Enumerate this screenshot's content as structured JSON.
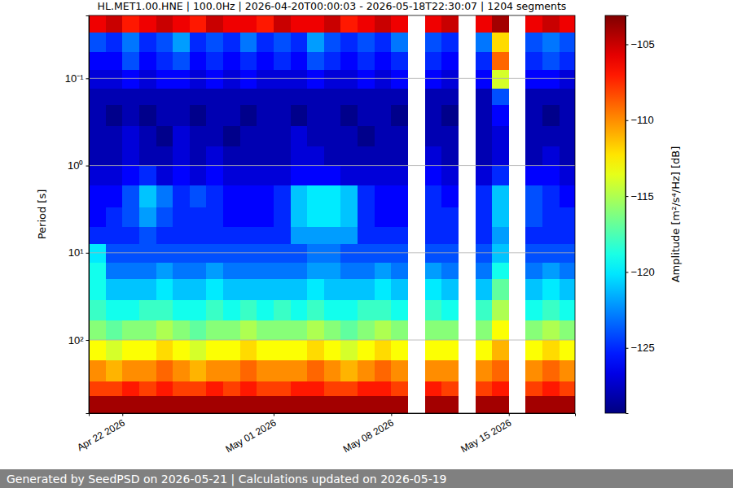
{
  "chart_data": {
    "type": "heatmap",
    "title": "HL.MET1.00.HNE | 100.0Hz | 2026-04-20T00:00:03 - 2026-05-18T22:30:07 | 1204 segments",
    "y_label": "Period [s]",
    "footer": "Generated by SeedPSD on 2026-05-21 | Calculations updated on 2026-05-19",
    "log": "y",
    "grid": "y",
    "xlim": [
      "2026-04-20T00:00:03",
      "2026-05-18T22:30:07"
    ],
    "xticks": [
      {
        "value": "2026-04-22",
        "label": "Apr 22 2026"
      },
      {
        "value": "2026-05-01",
        "label": "May 01 2026"
      },
      {
        "value": "2026-05-08",
        "label": "May 08 2026"
      },
      {
        "value": "2026-05-15",
        "label": "May 15 2026"
      }
    ],
    "ylim": [
      0.019,
      690
    ],
    "yticks": [
      {
        "value": 0.1,
        "label": "10⁻¹"
      },
      {
        "value": 1,
        "label": "10⁰"
      },
      {
        "value": 10,
        "label": "10¹"
      },
      {
        "value": 100,
        "label": "10²"
      }
    ],
    "x_bins": [
      "2026-04-20",
      "2026-04-21",
      "2026-04-22",
      "2026-04-23",
      "2026-04-24",
      "2026-04-25",
      "2026-04-26",
      "2026-04-27",
      "2026-04-28",
      "2026-04-29",
      "2026-04-30",
      "2026-05-01",
      "2026-05-02",
      "2026-05-03",
      "2026-05-04",
      "2026-05-05",
      "2026-05-06",
      "2026-05-07",
      "2026-05-08",
      "2026-05-09",
      "2026-05-10",
      "2026-05-11",
      "2026-05-12",
      "2026-05-13",
      "2026-05-14",
      "2026-05-15",
      "2026-05-16",
      "2026-05-17",
      "2026-05-18",
      "2026-05-19"
    ],
    "y_bins": [
      0.019,
      0.03,
      0.05,
      0.08,
      0.13,
      0.2,
      0.35,
      0.6,
      1,
      1.7,
      3,
      5,
      8,
      13,
      20,
      35,
      60,
      100,
      170,
      300,
      440,
      690
    ],
    "cells": [
      [
        -106,
        -105,
        -107,
        -106,
        -105,
        -106,
        -107,
        -105,
        -106,
        -106,
        -107,
        -105,
        -106,
        -106,
        -105,
        -107,
        -106,
        -105,
        -106,
        null,
        -106,
        -105,
        null,
        -106,
        -104,
        null,
        -106,
        -105,
        -106
      ],
      [
        -124,
        -125,
        -123,
        -125,
        -124,
        -122,
        -125,
        -124,
        -125,
        -123,
        -125,
        -124,
        -125,
        -122,
        -124,
        -125,
        -124,
        -125,
        -123,
        null,
        -124,
        -125,
        null,
        -123,
        -112,
        null,
        -124,
        -123,
        -124
      ],
      [
        -126,
        -126,
        -124,
        -126,
        -125,
        -124,
        -126,
        -125,
        -126,
        -125,
        -126,
        -125,
        -126,
        -124,
        -125,
        -126,
        -125,
        -126,
        -125,
        null,
        -125,
        -126,
        null,
        -125,
        -109,
        null,
        -125,
        -124,
        -125
      ],
      [
        -127,
        -127,
        -126,
        -127,
        -126,
        -126,
        -127,
        -126,
        -127,
        -126,
        -127,
        -127,
        -127,
        -126,
        -127,
        -127,
        -126,
        -127,
        -126,
        null,
        -126,
        -127,
        null,
        -126,
        -114,
        null,
        -126,
        -126,
        -127
      ],
      [
        -128,
        -128,
        -128,
        -128,
        -128,
        -128,
        -128,
        -128,
        -128,
        -128,
        -128,
        -128,
        -128,
        -128,
        -128,
        -128,
        -128,
        -128,
        -128,
        null,
        -128,
        -128,
        null,
        -128,
        -124,
        null,
        -128,
        -128,
        -128
      ],
      [
        -128,
        -129,
        -128,
        -129,
        -128,
        -128,
        -129,
        -128,
        -128,
        -129,
        -128,
        -128,
        -129,
        -128,
        -128,
        -129,
        -128,
        -128,
        -129,
        null,
        -128,
        -129,
        null,
        -128,
        -126,
        null,
        -128,
        -129,
        -128
      ],
      [
        -128,
        -128,
        -127,
        -128,
        -129,
        -127,
        -128,
        -128,
        -129,
        -128,
        -128,
        -128,
        -127,
        -128,
        -128,
        -128,
        -129,
        -128,
        -128,
        null,
        -128,
        -128,
        null,
        -128,
        -127,
        null,
        -128,
        -128,
        -128
      ],
      [
        -128,
        -128,
        -127,
        -128,
        -128,
        -127,
        -128,
        -127,
        -128,
        -128,
        -128,
        -128,
        -127,
        -127,
        -128,
        -128,
        -128,
        -128,
        -128,
        null,
        -127,
        -128,
        null,
        -128,
        -127,
        null,
        -128,
        -127,
        -128
      ],
      [
        -127,
        -127,
        -126,
        -125,
        -127,
        -126,
        -127,
        -126,
        -127,
        -127,
        -127,
        -127,
        -126,
        -126,
        -126,
        -127,
        -127,
        -127,
        -127,
        null,
        -126,
        -127,
        null,
        -127,
        -125,
        null,
        -126,
        -126,
        -127
      ],
      [
        -126,
        -126,
        -124,
        -121,
        -123,
        -125,
        -124,
        -125,
        -126,
        -126,
        -126,
        -125,
        -121,
        -120,
        -120,
        -121,
        -125,
        -126,
        -126,
        null,
        -125,
        -126,
        null,
        -125,
        -121,
        null,
        -124,
        -125,
        -126
      ],
      [
        -126,
        -125,
        -124,
        -122,
        -124,
        -125,
        -125,
        -125,
        -126,
        -126,
        -126,
        -125,
        -121,
        -120,
        -120,
        -121,
        -125,
        -126,
        -126,
        null,
        -125,
        -125,
        null,
        -125,
        -121,
        null,
        -124,
        -125,
        -125
      ],
      [
        -125,
        -125,
        -125,
        -124,
        -125,
        -125,
        -125,
        -125,
        -125,
        -125,
        -125,
        -125,
        -122,
        -122,
        -122,
        -122,
        -125,
        -125,
        -125,
        null,
        -125,
        -125,
        null,
        -125,
        -122,
        null,
        -125,
        -125,
        -125
      ],
      [
        -120,
        -124,
        -124,
        -124,
        -124,
        -124,
        -124,
        -124,
        -124,
        -124,
        -124,
        -124,
        -124,
        -123,
        -123,
        -124,
        -124,
        -124,
        -124,
        null,
        -124,
        -124,
        null,
        -124,
        -121,
        null,
        -124,
        -124,
        -124
      ],
      [
        -119,
        -123,
        -123,
        -123,
        -122,
        -123,
        -123,
        -122,
        -123,
        -123,
        -123,
        -123,
        -123,
        -122,
        -122,
        -123,
        -123,
        -122,
        -123,
        null,
        -122,
        -123,
        null,
        -123,
        -119,
        null,
        -123,
        -122,
        -123
      ],
      [
        -119,
        -121,
        -121,
        -121,
        -120,
        -121,
        -121,
        -120,
        -121,
        -121,
        -121,
        -121,
        -121,
        -120,
        -121,
        -121,
        -121,
        -120,
        -121,
        null,
        -120,
        -121,
        null,
        -121,
        -117,
        null,
        -121,
        -120,
        -121
      ],
      [
        -118,
        -119,
        -119,
        -118,
        -118,
        -119,
        -119,
        -118,
        -119,
        -118,
        -119,
        -118,
        -119,
        -118,
        -119,
        -119,
        -118,
        -118,
        -119,
        null,
        -118,
        -119,
        null,
        -118,
        -115,
        null,
        -119,
        -118,
        -119
      ],
      [
        -116,
        -117,
        -116,
        -116,
        -115,
        -116,
        -117,
        -116,
        -116,
        -115,
        -116,
        -116,
        -116,
        -115,
        -116,
        -117,
        -116,
        -115,
        -116,
        null,
        -116,
        -116,
        null,
        -116,
        -113,
        null,
        -116,
        -115,
        -116
      ],
      [
        -113,
        -114,
        -113,
        -113,
        -112,
        -113,
        -114,
        -113,
        -113,
        -112,
        -113,
        -113,
        -113,
        -112,
        -113,
        -114,
        -113,
        -112,
        -113,
        null,
        -113,
        -113,
        null,
        -113,
        -111,
        null,
        -113,
        -112,
        -113
      ],
      [
        -110,
        -111,
        -110,
        -110,
        -109,
        -110,
        -111,
        -110,
        -110,
        -109,
        -110,
        -110,
        -110,
        -109,
        -110,
        -111,
        -110,
        -109,
        -110,
        null,
        -110,
        -110,
        null,
        -110,
        -109,
        null,
        -110,
        -109,
        -110
      ],
      [
        -108,
        -108,
        -107,
        -108,
        -107,
        -108,
        -108,
        -107,
        -108,
        -107,
        -108,
        -108,
        -107,
        -107,
        -108,
        -108,
        -107,
        -107,
        -108,
        null,
        -107,
        -108,
        null,
        -108,
        -107,
        null,
        -108,
        -107,
        -108
      ],
      [
        -104,
        -104,
        -104,
        -104,
        -104,
        -104,
        -104,
        -104,
        -104,
        -104,
        -104,
        -104,
        -104,
        -104,
        -104,
        -104,
        -104,
        -104,
        -104,
        null,
        -104,
        -104,
        null,
        -104,
        -104,
        null,
        -104,
        -104,
        -104
      ]
    ],
    "colorbar": {
      "label": "Amplitude [m²/s⁴/Hz] [dB]",
      "range": [
        -129.3,
        -103.1
      ],
      "ticks": [
        {
          "value": -105,
          "label": "−105"
        },
        {
          "value": -110,
          "label": "−110"
        },
        {
          "value": -115,
          "label": "−115"
        },
        {
          "value": -120,
          "label": "−120"
        },
        {
          "value": -125,
          "label": "−125"
        }
      ]
    }
  }
}
